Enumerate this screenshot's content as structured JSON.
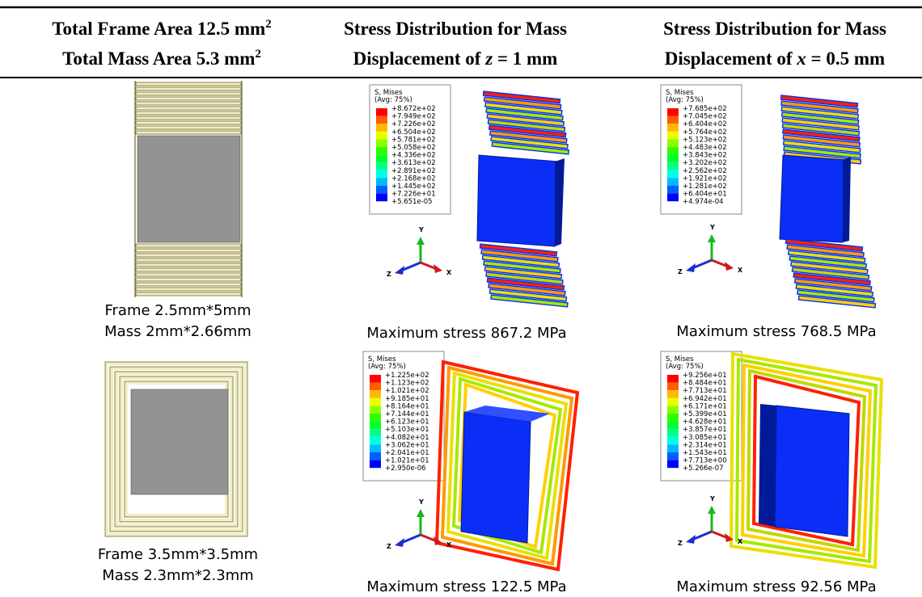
{
  "table": {
    "header": [
      {
        "line1": {
          "text": "Total Frame Area 12.5 mm",
          "sup": "2"
        },
        "line2": {
          "text": "Total Mass Area 5.3 mm",
          "sup": "2"
        }
      },
      {
        "line1": "Stress Distribution for Mass",
        "line2": {
          "before": "Displacement of ",
          "var": "z",
          "after": " = 1 mm"
        }
      },
      {
        "line1": "Stress Distribution for Mass",
        "line2": {
          "before": "Displacement of ",
          "var": "x",
          "after": " = 0.5 mm"
        }
      }
    ],
    "rows": [
      {
        "design": [
          "Frame 2.5mm*5mm",
          "Mass 2mm*2.66mm"
        ],
        "z_caption": "Maximum stress 867.2 MPa",
        "z_legend": [
          "+8.672e+02",
          "+7.949e+02",
          "+7.226e+02",
          "+6.504e+02",
          "+5.781e+02",
          "+5.058e+02",
          "+4.336e+02",
          "+3.613e+02",
          "+2.891e+02",
          "+2.168e+02",
          "+1.445e+02",
          "+7.226e+01",
          "+5.651e-05"
        ],
        "x_caption": "Maximum stress 768.5 MPa",
        "x_legend": [
          "+7.685e+02",
          "+7.045e+02",
          "+6.404e+02",
          "+5.764e+02",
          "+5.123e+02",
          "+4.483e+02",
          "+3.843e+02",
          "+3.202e+02",
          "+2.562e+02",
          "+1.921e+02",
          "+1.281e+02",
          "+6.404e+01",
          "+4.974e-04"
        ]
      },
      {
        "design": [
          "Frame 3.5mm*3.5mm",
          "Mass 2.3mm*2.3mm"
        ],
        "z_caption": "Maximum stress 122.5 MPa",
        "z_legend": [
          "+1.225e+02",
          "+1.123e+02",
          "+1.021e+02",
          "+9.185e+01",
          "+8.164e+01",
          "+7.144e+01",
          "+6.123e+01",
          "+5.103e+01",
          "+4.082e+01",
          "+3.062e+01",
          "+2.041e+01",
          "+1.021e+01",
          "+2.950e-06"
        ],
        "x_caption": "Maximum stress 92.56 MPa",
        "x_legend": [
          "+9.256e+01",
          "+8.484e+01",
          "+7.713e+01",
          "+6.942e+01",
          "+6.171e+01",
          "+5.399e+01",
          "+4.628e+01",
          "+3.857e+01",
          "+3.085e+01",
          "+2.314e+01",
          "+1.543e+01",
          "+7.713e+00",
          "+5.266e-07"
        ]
      }
    ]
  },
  "legend": {
    "title": "S, Mises",
    "subtitle": "(Avg: 75%)"
  },
  "axes": {
    "y": "Y",
    "z": "Z",
    "x": "X"
  }
}
